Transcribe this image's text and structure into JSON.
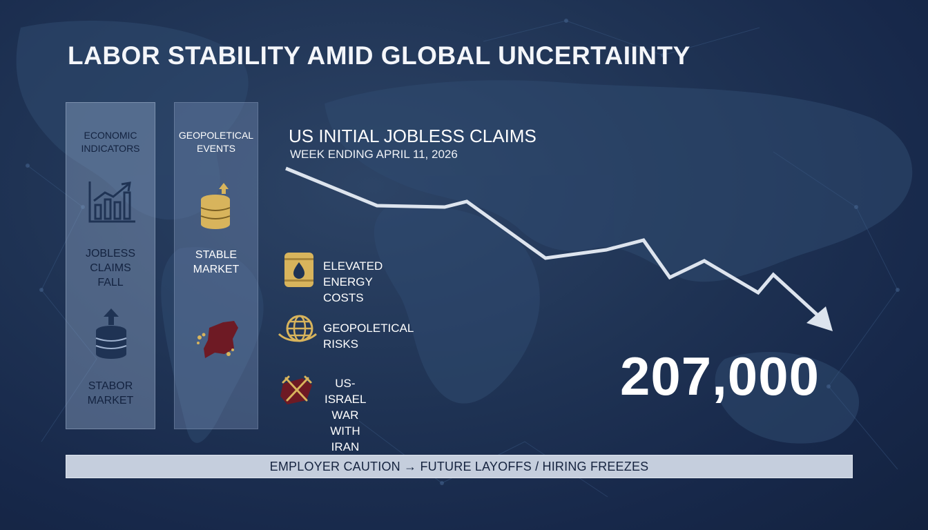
{
  "title": "LABOR STABILITY AMID GLOBAL UNCERTAIINTY",
  "panels": {
    "economic": {
      "header": "ECONOMIC\nINDICATORS",
      "item1": "JOBLESS\nCLAIMS\nFALL",
      "item2": "STABOR\nMARKET",
      "icons": [
        "bar-chart-up-icon",
        "coin-stack-up-icon"
      ]
    },
    "geopolitical": {
      "header": "GEOPOLETICAL\nEVENTS",
      "item1": "STABLE\nMARKET",
      "icons": [
        "coin-stack-up-icon",
        "map-region-icon"
      ]
    }
  },
  "chart": {
    "title": "US INITIAL JOBLESS CLAIMS",
    "subtitle": "WEEK ENDING APRIL 11, 2026",
    "value": "207,000"
  },
  "chart_data": {
    "type": "line",
    "title": "US INITIAL JOBLESS CLAIMS",
    "subtitle": "WEEK ENDING APRIL 11, 2026",
    "trend": "downward",
    "value_label": "207,000"
  },
  "factors": [
    {
      "label": "ELEVATED ENERGY\nCOSTS",
      "icon": "oil-barrel-icon"
    },
    {
      "label": "GEOPOLETICAL RISKS",
      "icon": "globe-icon"
    },
    {
      "label": "US-ISRAEL WAR\nWITH IRAN",
      "icon": "crossed-swords-icon"
    }
  ],
  "banner": "EMPLOYER CAUTION → FUTURE LAYOFFS / HIRING FREEZES",
  "colors": {
    "background": "#1f3354",
    "gold": "#d8b45c",
    "crimson": "#6e1a24",
    "banner": "#c5cedd",
    "icon_navy": "#1f3354"
  }
}
